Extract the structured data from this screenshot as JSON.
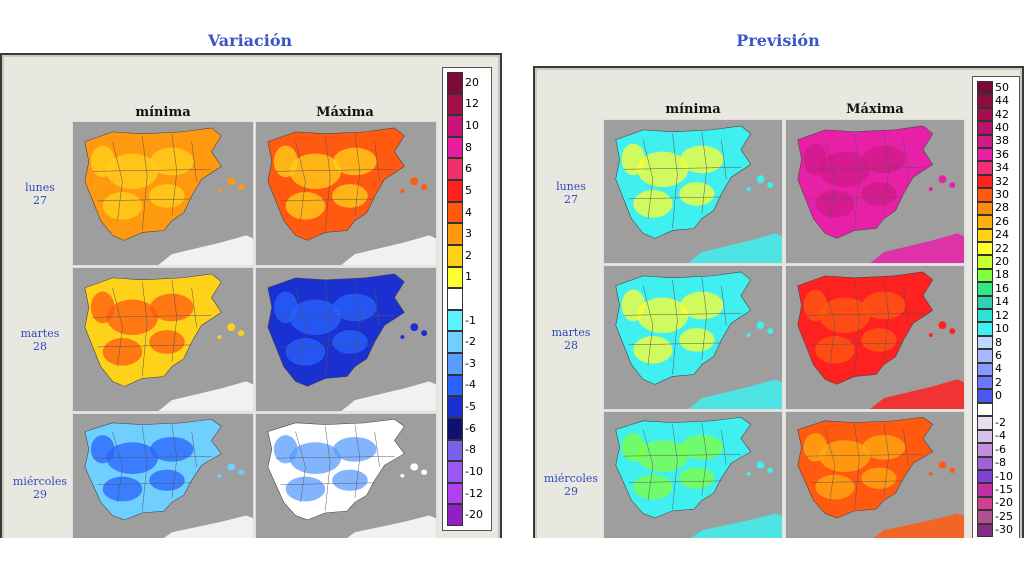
{
  "left": {
    "title": "Variación",
    "col_headers": [
      "mínima",
      "Máxima"
    ],
    "days": [
      {
        "name": "lunes",
        "num": "27"
      },
      {
        "name": "martes",
        "num": "28"
      },
      {
        "name": "miércoles",
        "num": "29"
      }
    ],
    "legend": [
      {
        "label": "20",
        "color": "#7a0a36"
      },
      {
        "label": "12",
        "color": "#a3104a"
      },
      {
        "label": "10",
        "color": "#c9157a"
      },
      {
        "label": "8",
        "color": "#e81ea0"
      },
      {
        "label": "6",
        "color": "#f0306a"
      },
      {
        "label": "5",
        "color": "#ff2020"
      },
      {
        "label": "4",
        "color": "#ff5a10"
      },
      {
        "label": "3",
        "color": "#ff9a10"
      },
      {
        "label": "2",
        "color": "#ffd21a"
      },
      {
        "label": "1",
        "color": "#ffff30"
      },
      {
        "label": "",
        "color": "#ffffff"
      },
      {
        "label": "-1",
        "color": "#5ef0ff"
      },
      {
        "label": "-2",
        "color": "#6fcfff"
      },
      {
        "label": "-3",
        "color": "#5a9cff"
      },
      {
        "label": "-4",
        "color": "#2a62ff"
      },
      {
        "label": "-5",
        "color": "#1a30d0"
      },
      {
        "label": "-6",
        "color": "#101070"
      },
      {
        "label": "-8",
        "color": "#7a60e8"
      },
      {
        "label": "-10",
        "color": "#9a58f0"
      },
      {
        "label": "-12",
        "color": "#b040f0"
      },
      {
        "label": "-20",
        "color": "#9020c0"
      }
    ]
  },
  "right": {
    "title": "Previsión",
    "col_headers": [
      "mínima",
      "Máxima"
    ],
    "days": [
      {
        "name": "lunes",
        "num": "27"
      },
      {
        "name": "martes",
        "num": "28"
      },
      {
        "name": "miércoles",
        "num": "29"
      }
    ],
    "legend": [
      {
        "label": "50",
        "color": "#7a0a36"
      },
      {
        "label": "44",
        "color": "#8c0c40"
      },
      {
        "label": "42",
        "color": "#a01050"
      },
      {
        "label": "40",
        "color": "#b8146a"
      },
      {
        "label": "38",
        "color": "#d01a88"
      },
      {
        "label": "36",
        "color": "#e820a8"
      },
      {
        "label": "34",
        "color": "#f03078"
      },
      {
        "label": "32",
        "color": "#ff2020"
      },
      {
        "label": "30",
        "color": "#ff5a10"
      },
      {
        "label": "28",
        "color": "#ff8a10"
      },
      {
        "label": "26",
        "color": "#ffae10"
      },
      {
        "label": "24",
        "color": "#ffd21a"
      },
      {
        "label": "22",
        "color": "#ffff30"
      },
      {
        "label": "20",
        "color": "#c8ff30"
      },
      {
        "label": "18",
        "color": "#80ff40"
      },
      {
        "label": "16",
        "color": "#30e880"
      },
      {
        "label": "14",
        "color": "#30d0b0"
      },
      {
        "label": "12",
        "color": "#30e0d0"
      },
      {
        "label": "10",
        "color": "#40f0f0"
      },
      {
        "label": "8",
        "color": "#c0d8ff"
      },
      {
        "label": "6",
        "color": "#a8b8ff"
      },
      {
        "label": "4",
        "color": "#8a98ff"
      },
      {
        "label": "2",
        "color": "#6a78ff"
      },
      {
        "label": "0",
        "color": "#4a58f0"
      },
      {
        "label": "",
        "color": "#ffffff"
      },
      {
        "label": "-2",
        "color": "#e8e0f0"
      },
      {
        "label": "-4",
        "color": "#d8c0e8"
      },
      {
        "label": "-6",
        "color": "#c090e0"
      },
      {
        "label": "-8",
        "color": "#a060d8"
      },
      {
        "label": "-10",
        "color": "#8040d0"
      },
      {
        "label": "-15",
        "color": "#c030a0"
      },
      {
        "label": "-20",
        "color": "#d04090"
      },
      {
        "label": "-25",
        "color": "#b05090"
      },
      {
        "label": "-30",
        "color": "#803080"
      }
    ]
  },
  "maps": {
    "left": [
      [
        "#ff9a10",
        "#ff5a10"
      ],
      [
        "#ffd21a",
        "#1a30d0"
      ],
      [
        "#6fcfff",
        "#ffffff"
      ]
    ],
    "right": [
      [
        "#40f0f0",
        "#e820a8"
      ],
      [
        "#40f0f0",
        "#ff2020"
      ],
      [
        "#40f0f0",
        "#ff5a10"
      ]
    ],
    "left_secondary": [
      [
        "#ffd21a",
        "#ffd21a"
      ],
      [
        "#ff5a10",
        "#2a62ff"
      ],
      [
        "#2a62ff",
        "#5a9cff"
      ]
    ],
    "right_secondary": [
      [
        "#ffff30",
        "#d01a88"
      ],
      [
        "#ffff30",
        "#ff5a10"
      ],
      [
        "#80ff40",
        "#ffae10"
      ]
    ]
  }
}
